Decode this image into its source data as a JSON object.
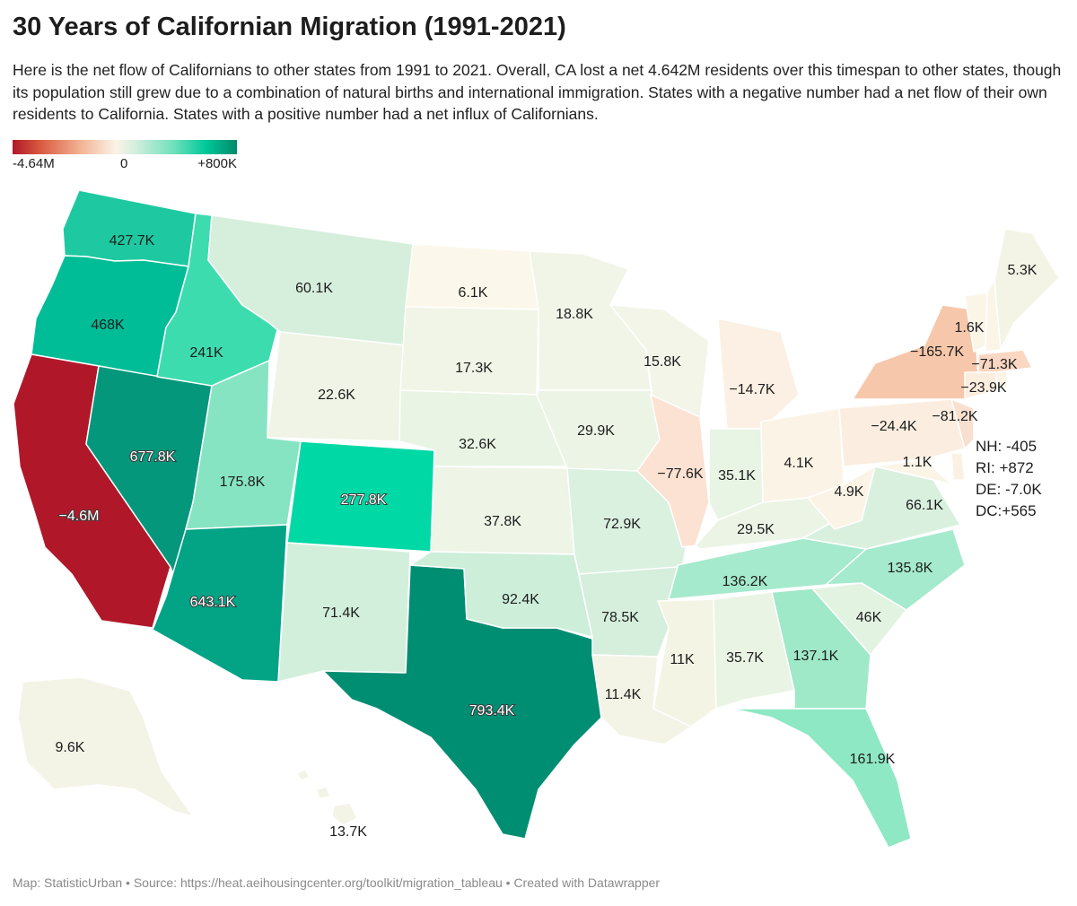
{
  "title": "30 Years of Californian Migration (1991-2021)",
  "description": "Here is the net flow of Californians to other states from 1991 to 2021. Overall, CA lost a net 4.642M residents over this timespan to other states, though its population still grew due to a combination of natural births and international immigration. States with a negative number had a net flow of their own residents to California. States with a positive number had a net influx of Californians.",
  "legend": {
    "min_label": "-4.64M",
    "mid_label": "0",
    "max_label": "+800K"
  },
  "map_data": {
    "type": "choropleth",
    "metric": "net flow of Californians (1991-2021)",
    "states": [
      {
        "code": "WA",
        "label": "427.7K",
        "value": 427700,
        "color": "#1ec9a2"
      },
      {
        "code": "OR",
        "label": "468K",
        "value": 468000,
        "color": "#00bd97"
      },
      {
        "code": "CA",
        "label": "−4.6M",
        "value": -4642000,
        "color": "#b0182a"
      },
      {
        "code": "NV",
        "label": "677.8K",
        "value": 677800,
        "color": "#04977b"
      },
      {
        "code": "ID",
        "label": "241K",
        "value": 241000,
        "color": "#3ddcaf"
      },
      {
        "code": "MT",
        "label": "60.1K",
        "value": 60100,
        "color": "#d6efdc"
      },
      {
        "code": "WY",
        "label": "22.6K",
        "value": 22600,
        "color": "#eff4e6"
      },
      {
        "code": "UT",
        "label": "175.8K",
        "value": 175800,
        "color": "#86e4c3"
      },
      {
        "code": "CO",
        "label": "277.8K",
        "value": 277800,
        "color": "#00d8a6"
      },
      {
        "code": "AZ",
        "label": "643.1K",
        "value": 643100,
        "color": "#03a386"
      },
      {
        "code": "NM",
        "label": "71.4K",
        "value": 71400,
        "color": "#d2efdc"
      },
      {
        "code": "TX",
        "label": "793.4K",
        "value": 793400,
        "color": "#008e72"
      },
      {
        "code": "ND",
        "label": "6.1K",
        "value": 6100,
        "color": "#fbf7ea"
      },
      {
        "code": "SD",
        "label": "17.3K",
        "value": 17300,
        "color": "#f1f5e7"
      },
      {
        "code": "NE",
        "label": "32.6K",
        "value": 32600,
        "color": "#e9f4e4"
      },
      {
        "code": "KS",
        "label": "37.8K",
        "value": 37800,
        "color": "#eef4e6"
      },
      {
        "code": "OK",
        "label": "92.4K",
        "value": 92400,
        "color": "#cdeed9"
      },
      {
        "code": "MN",
        "label": "18.8K",
        "value": 18800,
        "color": "#f1f5e8"
      },
      {
        "code": "IA",
        "label": "29.9K",
        "value": 29900,
        "color": "#ecf4e5"
      },
      {
        "code": "MO",
        "label": "72.9K",
        "value": 72900,
        "color": "#daf1e0"
      },
      {
        "code": "AR",
        "label": "78.5K",
        "value": 78500,
        "color": "#d5efdc"
      },
      {
        "code": "LA",
        "label": "11.4K",
        "value": 11400,
        "color": "#f3f4e6"
      },
      {
        "code": "WI",
        "label": "15.8K",
        "value": 15800,
        "color": "#f2f5e8"
      },
      {
        "code": "IL",
        "label": "−77.6K",
        "value": -77600,
        "color": "#fbe2d3"
      },
      {
        "code": "MI",
        "label": "−14.7K",
        "value": -14700,
        "color": "#fbf0e3"
      },
      {
        "code": "IN",
        "label": "35.1K",
        "value": 35100,
        "color": "#e8f4e4"
      },
      {
        "code": "OH",
        "label": "4.1K",
        "value": 4100,
        "color": "#fbf3e6"
      },
      {
        "code": "KY",
        "label": "29.5K",
        "value": 29500,
        "color": "#ebf4e5"
      },
      {
        "code": "TN",
        "label": "136.2K",
        "value": 136200,
        "color": "#a5eacd"
      },
      {
        "code": "MS",
        "label": "11K",
        "value": 11000,
        "color": "#f4f4e5"
      },
      {
        "code": "AL",
        "label": "35.7K",
        "value": 35700,
        "color": "#eaf4e4"
      },
      {
        "code": "GA",
        "label": "137.1K",
        "value": 137100,
        "color": "#9fe8c8"
      },
      {
        "code": "FL",
        "label": "161.9K",
        "value": 161900,
        "color": "#8ee8c4"
      },
      {
        "code": "SC",
        "label": "46K",
        "value": 46000,
        "color": "#e3f3e2"
      },
      {
        "code": "NC",
        "label": "135.8K",
        "value": 135800,
        "color": "#a5eacd"
      },
      {
        "code": "VA",
        "label": "66.1K",
        "value": 66100,
        "color": "#d9f0df"
      },
      {
        "code": "WV",
        "label": "4.9K",
        "value": 4900,
        "color": "#fbf3e6"
      },
      {
        "code": "MD",
        "label": "1.1K",
        "value": 1100,
        "color": "#fbf5e8"
      },
      {
        "code": "PA",
        "label": "−24.4K",
        "value": -24400,
        "color": "#fbeee0"
      },
      {
        "code": "NY",
        "label": "−165.7K",
        "value": -165700,
        "color": "#f7c7ab"
      },
      {
        "code": "NJ",
        "label": "−81.2K",
        "value": -81200,
        "color": "#f9dfcf"
      },
      {
        "code": "CT",
        "label": "−23.9K",
        "value": -23900,
        "color": "#fbeedf"
      },
      {
        "code": "MA",
        "label": "−71.3K",
        "value": -71300,
        "color": "#fad7c3"
      },
      {
        "code": "VT",
        "label": "1.6K",
        "value": 1600,
        "color": "#fbf5e8"
      },
      {
        "code": "ME",
        "label": "5.3K",
        "value": 5300,
        "color": "#f4f4e6"
      },
      {
        "code": "AK",
        "label": "9.6K",
        "value": 9600,
        "color": "#f3f4e6"
      },
      {
        "code": "HI",
        "label": "13.7K",
        "value": 13700,
        "color": "#f3f4e6"
      }
    ],
    "small_states": [
      {
        "code": "NH",
        "text": "NH: -405"
      },
      {
        "code": "RI",
        "text": "RI: +872"
      },
      {
        "code": "DE",
        "text": "DE: -7.0K"
      },
      {
        "code": "DC",
        "text": "DC:+565"
      }
    ],
    "extra_shapes": [
      {
        "code": "NH",
        "color": "#fbf5e8"
      },
      {
        "code": "RI",
        "color": "#fbf5e8"
      },
      {
        "code": "DE",
        "color": "#fbf1e3"
      }
    ]
  },
  "footer": "Map: StatisticUrban • Source: https://heat.aeihousingcenter.org/toolkit/migration_tableau • Created with Datawrapper"
}
